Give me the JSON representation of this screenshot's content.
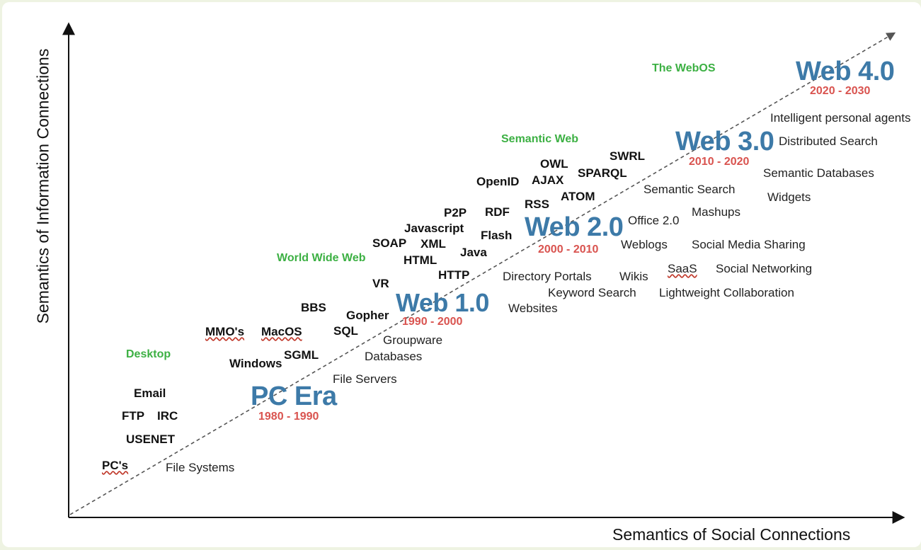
{
  "axes": {
    "x_title": "Semantics of Social Connections",
    "y_title": "Semantics of Information Connections"
  },
  "eras": {
    "pc_era": {
      "name": "PC Era",
      "dates": "1980 - 1990"
    },
    "web1": {
      "name": "Web 1.0",
      "dates": "1990 - 2000"
    },
    "web2": {
      "name": "Web 2.0",
      "dates": "2000 - 2010"
    },
    "web3": {
      "name": "Web 3.0",
      "dates": "2010 - 2020"
    },
    "web4": {
      "name": "Web 4.0",
      "dates": "2020 - 2030"
    }
  },
  "categories": {
    "desktop": "Desktop",
    "www": "World Wide Web",
    "semantic_web": "Semantic Web",
    "webos": "The WebOS"
  },
  "technologies": {
    "pcs": "PC's",
    "usenet": "USENET",
    "ftp": "FTP",
    "irc": "IRC",
    "email": "Email",
    "windows": "Windows",
    "sgml": "SGML",
    "mmos": "MMO's",
    "macos": "MacOS",
    "sql": "SQL",
    "bbs": "BBS",
    "gopher": "Gopher",
    "vr": "VR",
    "soap": "SOAP",
    "html": "HTML",
    "xml": "XML",
    "http": "HTTP",
    "java": "Java",
    "javascript": "Javascript",
    "p2p": "P2P",
    "flash": "Flash",
    "rdf": "RDF",
    "openid": "OpenID",
    "owl": "OWL",
    "ajax": "AJAX",
    "rss": "RSS",
    "atom": "ATOM",
    "sparql": "SPARQL",
    "swrl": "SWRL"
  },
  "applications": {
    "file_systems": "File Systems",
    "file_servers": "File Servers",
    "databases": "Databases",
    "groupware": "Groupware",
    "websites": "Websites",
    "directory_portals": "Directory Portals",
    "keyword_search": "Keyword Search",
    "wikis": "Wikis",
    "weblogs": "Weblogs",
    "office2": "Office 2.0",
    "saas": "SaaS",
    "social_networking": "Social Networking",
    "social_media_sharing": "Social Media Sharing",
    "lightweight_collaboration": "Lightweight Collaboration",
    "mashups": "Mashups",
    "semantic_search": "Semantic Search",
    "semantic_databases": "Semantic Databases",
    "widgets": "Widgets",
    "distributed_search": "Distributed Search",
    "intelligent_agents": "Intelligent personal agents"
  },
  "colors": {
    "era": "#3d7aa8",
    "dates": "#d9534f",
    "category": "#3cb043",
    "background": "#eef3e2"
  }
}
